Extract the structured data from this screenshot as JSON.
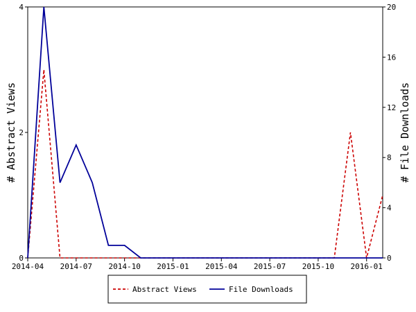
{
  "chart_data": {
    "type": "line",
    "title": "",
    "x_ticks": [
      "2014-04",
      "2014-07",
      "2014-10",
      "2015-01",
      "2015-04",
      "2015-07",
      "2015-10",
      "2016-01"
    ],
    "x_range": [
      "2014-04",
      "2016-02"
    ],
    "x": [
      "2014-04",
      "2014-05",
      "2014-06",
      "2014-07",
      "2014-08",
      "2014-09",
      "2014-10",
      "2014-11",
      "2014-12",
      "2015-01",
      "2015-02",
      "2015-03",
      "2015-04",
      "2015-05",
      "2015-06",
      "2015-07",
      "2015-08",
      "2015-09",
      "2015-10",
      "2015-11",
      "2015-12",
      "2016-01",
      "2016-02"
    ],
    "y_left": {
      "label": "# Abstract Views",
      "range": [
        0,
        4
      ],
      "ticks": [
        "0",
        "2",
        "4"
      ]
    },
    "y_right": {
      "label": "# File Downloads",
      "range": [
        0,
        20
      ],
      "ticks": [
        "0",
        "4",
        "8",
        "12",
        "16",
        "20"
      ]
    },
    "series": [
      {
        "name": "Abstract Views",
        "axis": "left",
        "color": "#cc0000",
        "dashed": true,
        "values": [
          0,
          3,
          0,
          0,
          0,
          0,
          0,
          0,
          0,
          0,
          0,
          0,
          0,
          0,
          0,
          0,
          0,
          0,
          0,
          0,
          2,
          0,
          1
        ]
      },
      {
        "name": "File Downloads",
        "axis": "right",
        "color": "#000099",
        "dashed": false,
        "values": [
          0,
          20,
          6,
          9,
          6,
          1,
          1,
          0,
          0,
          0,
          0,
          0,
          0,
          0,
          0,
          0,
          0,
          0,
          0,
          0,
          0,
          0,
          0
        ]
      }
    ],
    "legend": {
      "position": "bottom",
      "items": [
        "Abstract Views",
        "File Downloads"
      ]
    },
    "grid": false
  }
}
